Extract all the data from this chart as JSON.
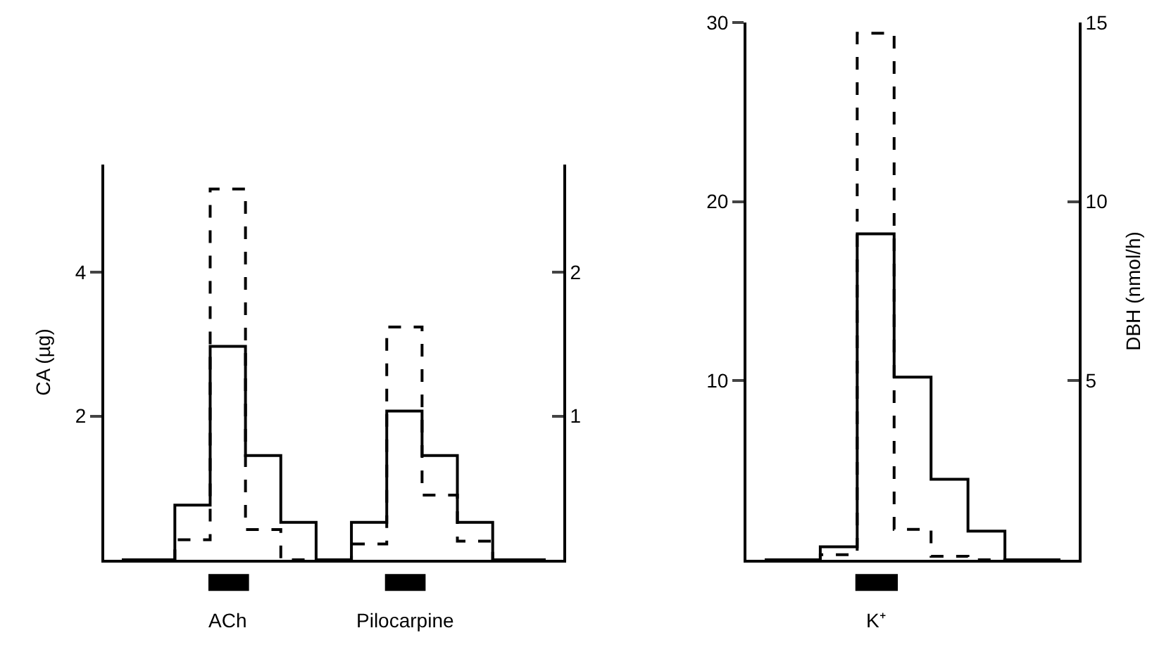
{
  "chart_data": [
    {
      "type": "step",
      "ylabel": "CA (µg)",
      "categories": [
        null,
        null,
        null,
        null,
        null,
        null,
        null,
        null,
        null,
        null,
        null,
        null,
        null
      ],
      "series": [
        {
          "color": "#000000",
          "line_style": "solid",
          "values": [
            0,
            0,
            0.76,
            2.97,
            1.45,
            0.52,
            0,
            0.52,
            2.07,
            1.45,
            0.52,
            0,
            0
          ]
        },
        {
          "color": "#000000",
          "line_style": "dashed",
          "axis": "y2",
          "values": [
            0,
            0,
            0.14,
            2.58,
            0.21,
            0,
            0,
            0.11,
            1.62,
            0.45,
            0.13,
            0,
            0
          ]
        }
      ],
      "ylim": [
        0,
        5.5
      ],
      "yticks": [
        2,
        4
      ],
      "y2lim": [
        0,
        2.75
      ],
      "y2ticks": [
        1,
        2
      ],
      "annotations": [
        "ACh",
        "Pilocarpine"
      ]
    },
    {
      "type": "step",
      "y2label": "DBH (nmol/h)",
      "categories": [
        null,
        null,
        null,
        null,
        null,
        null,
        null,
        null,
        null
      ],
      "series": [
        {
          "color": "#000000",
          "line_style": "solid",
          "values": [
            0,
            0,
            0.73,
            18.2,
            10.2,
            4.5,
            1.6,
            0,
            0
          ]
        },
        {
          "color": "#000000",
          "line_style": "dashed",
          "axis": "y2",
          "values": [
            0,
            0,
            0.14,
            14.7,
            0.85,
            0.1,
            0,
            0,
            0
          ]
        }
      ],
      "ylim": [
        0,
        30
      ],
      "yticks": [
        10,
        20,
        30
      ],
      "y2lim": [
        0,
        15
      ],
      "y2ticks": [
        5,
        10,
        15
      ],
      "annotations": [
        "K⁺"
      ]
    }
  ]
}
